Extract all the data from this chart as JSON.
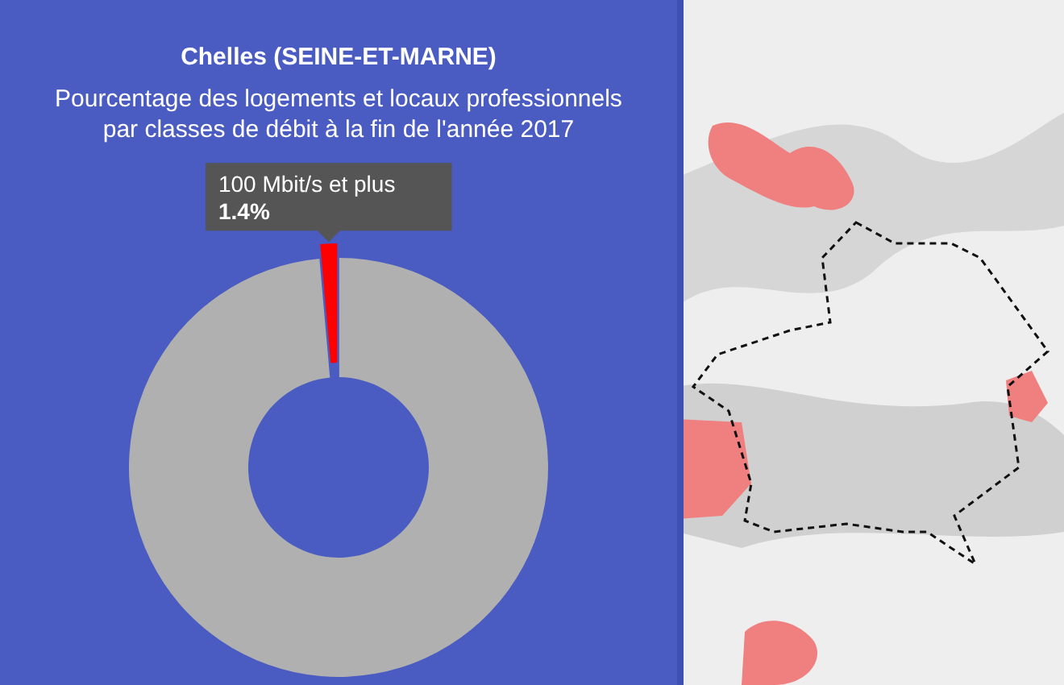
{
  "chart_data": {
    "type": "donut",
    "title": "Chelles (SEINE-ET-MARNE)",
    "subtitle": "Pourcentage des logements et locaux professionnels\npar classes de débit à la fin de l'année 2017",
    "categories": [
      null,
      "100 Mbit/s et plus"
    ],
    "values": [
      98.6,
      1.4
    ],
    "colors": [
      "#b0b0b0",
      "#ff0000"
    ],
    "value_labels": [
      null,
      "1.4%"
    ]
  }
}
